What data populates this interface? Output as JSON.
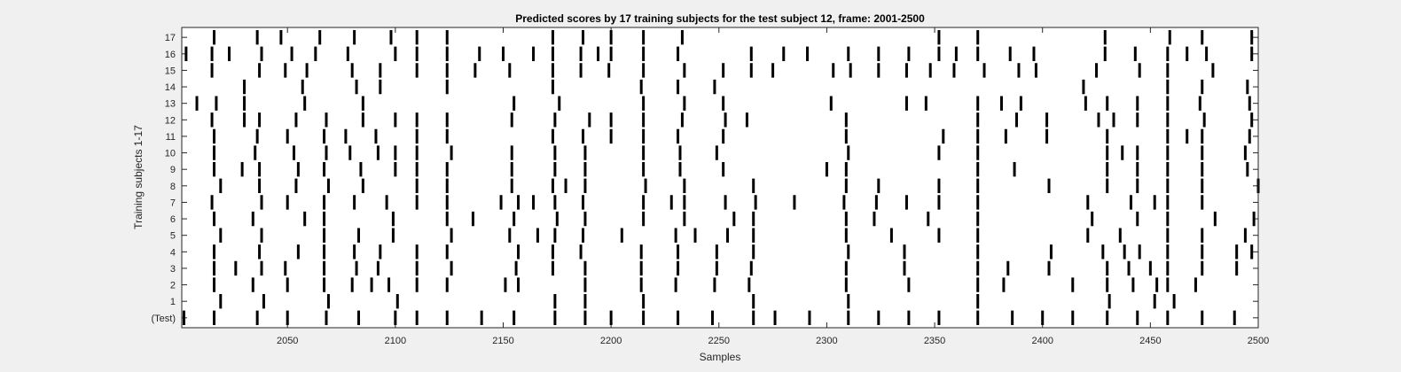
{
  "chart_data": {
    "type": "raster",
    "title": "Predicted scores by 17 training subjects for the test subject 12, frame: 2001-2500",
    "xlabel": "Samples",
    "ylabel": "Training subjects 1-17",
    "xlim": [
      2001,
      2500
    ],
    "xticks": [
      2050,
      2100,
      2150,
      2200,
      2250,
      2300,
      2350,
      2400,
      2450,
      2500
    ],
    "rows": [
      {
        "label": "(Test)",
        "events": [
          2002,
          2016,
          2036,
          2050,
          2068,
          2083,
          2100,
          2110,
          2124,
          2140,
          2155,
          2174,
          2188,
          2200,
          2215,
          2231,
          2247,
          2266,
          2276,
          2292,
          2310,
          2324,
          2338,
          2352,
          2370,
          2386,
          2400,
          2414,
          2430,
          2444,
          2458,
          2474,
          2489
        ]
      },
      {
        "label": "1",
        "events": [
          2019,
          2039,
          2069,
          2101,
          2174,
          2188,
          2215,
          2266,
          2310,
          2370,
          2431,
          2452,
          2461
        ]
      },
      {
        "label": "2",
        "events": [
          2016,
          2034,
          2050,
          2067,
          2080,
          2089,
          2097,
          2110,
          2124,
          2151,
          2157,
          2188,
          2214,
          2230,
          2248,
          2264,
          2309,
          2338,
          2370,
          2382,
          2414,
          2430,
          2442,
          2453,
          2458,
          2471
        ]
      },
      {
        "label": "3",
        "events": [
          2016,
          2026,
          2038,
          2049,
          2067,
          2082,
          2092,
          2110,
          2126,
          2156,
          2173,
          2188,
          2214,
          2231,
          2249,
          2265,
          2309,
          2336,
          2370,
          2384,
          2403,
          2430,
          2440,
          2450,
          2458,
          2474,
          2490
        ]
      },
      {
        "label": "4",
        "events": [
          2016,
          2037,
          2055,
          2067,
          2081,
          2093,
          2110,
          2124,
          2157,
          2173,
          2186,
          2214,
          2231,
          2249,
          2266,
          2310,
          2336,
          2370,
          2404,
          2428,
          2438,
          2445,
          2458,
          2474,
          2490,
          2497
        ]
      },
      {
        "label": "5",
        "events": [
          2019,
          2038,
          2067,
          2083,
          2099,
          2126,
          2153,
          2166,
          2174,
          2187,
          2205,
          2230,
          2239,
          2254,
          2266,
          2309,
          2330,
          2352,
          2370,
          2421,
          2436,
          2458,
          2474,
          2494
        ]
      },
      {
        "label": "6",
        "events": [
          2016,
          2034,
          2058,
          2067,
          2099,
          2124,
          2136,
          2155,
          2175,
          2188,
          2215,
          2234,
          2257,
          2266,
          2309,
          2322,
          2347,
          2370,
          2423,
          2444,
          2458,
          2480,
          2498
        ]
      },
      {
        "label": "7",
        "events": [
          2015,
          2038,
          2050,
          2067,
          2081,
          2096,
          2110,
          2124,
          2149,
          2157,
          2164,
          2174,
          2187,
          2215,
          2228,
          2234,
          2253,
          2267,
          2285,
          2308,
          2323,
          2337,
          2352,
          2370,
          2421,
          2441,
          2452,
          2458,
          2474
        ]
      },
      {
        "label": "8",
        "events": [
          2019,
          2037,
          2054,
          2069,
          2085,
          2110,
          2124,
          2154,
          2173,
          2179,
          2188,
          2216,
          2234,
          2266,
          2309,
          2324,
          2352,
          2370,
          2403,
          2430,
          2444,
          2458,
          2474,
          2500
        ]
      },
      {
        "label": "9",
        "events": [
          2016,
          2029,
          2037,
          2055,
          2067,
          2084,
          2100,
          2110,
          2124,
          2154,
          2174,
          2188,
          2215,
          2232,
          2252,
          2300,
          2309,
          2370,
          2387,
          2430,
          2444,
          2458,
          2474,
          2495
        ]
      },
      {
        "label": "10",
        "events": [
          2016,
          2035,
          2053,
          2068,
          2079,
          2092,
          2100,
          2110,
          2126,
          2154,
          2174,
          2188,
          2215,
          2232,
          2249,
          2310,
          2352,
          2370,
          2430,
          2437,
          2444,
          2458,
          2474,
          2494
        ]
      },
      {
        "label": "11",
        "events": [
          2016,
          2036,
          2050,
          2067,
          2077,
          2091,
          2110,
          2124,
          2173,
          2187,
          2200,
          2215,
          2231,
          2252,
          2309,
          2354,
          2370,
          2383,
          2402,
          2430,
          2458,
          2467,
          2474,
          2496
        ]
      },
      {
        "label": "12",
        "events": [
          2015,
          2030,
          2037,
          2054,
          2068,
          2085,
          2100,
          2110,
          2124,
          2154,
          2174,
          2190,
          2200,
          2215,
          2233,
          2253,
          2263,
          2309,
          2370,
          2388,
          2402,
          2426,
          2433,
          2444,
          2458,
          2475,
          2497
        ]
      },
      {
        "label": "13",
        "events": [
          2008,
          2017,
          2030,
          2058,
          2085,
          2155,
          2176,
          2215,
          2234,
          2252,
          2302,
          2337,
          2346,
          2370,
          2381,
          2390,
          2420,
          2430,
          2444,
          2458,
          2473,
          2496
        ]
      },
      {
        "label": "14",
        "events": [
          2030,
          2057,
          2082,
          2093,
          2124,
          2173,
          2214,
          2231,
          2248,
          2419,
          2458,
          2474,
          2495
        ]
      },
      {
        "label": "15",
        "events": [
          2015,
          2037,
          2049,
          2059,
          2080,
          2093,
          2110,
          2124,
          2137,
          2153,
          2173,
          2186,
          2199,
          2215,
          2234,
          2252,
          2265,
          2275,
          2303,
          2311,
          2324,
          2337,
          2348,
          2359,
          2373,
          2389,
          2397,
          2425,
          2445,
          2458,
          2479
        ]
      },
      {
        "label": "16",
        "events": [
          2003,
          2015,
          2023,
          2038,
          2052,
          2063,
          2078,
          2100,
          2110,
          2124,
          2139,
          2150,
          2164,
          2173,
          2186,
          2194,
          2200,
          2215,
          2231,
          2265,
          2280,
          2291,
          2310,
          2324,
          2338,
          2352,
          2360,
          2370,
          2385,
          2396,
          2429,
          2443,
          2458,
          2467,
          2476,
          2497
        ]
      },
      {
        "label": "17",
        "events": [
          2016,
          2036,
          2047,
          2065,
          2081,
          2098,
          2110,
          2124,
          2173,
          2187,
          2200,
          2215,
          2233,
          2352,
          2370,
          2429,
          2459,
          2474,
          2497
        ]
      }
    ]
  }
}
